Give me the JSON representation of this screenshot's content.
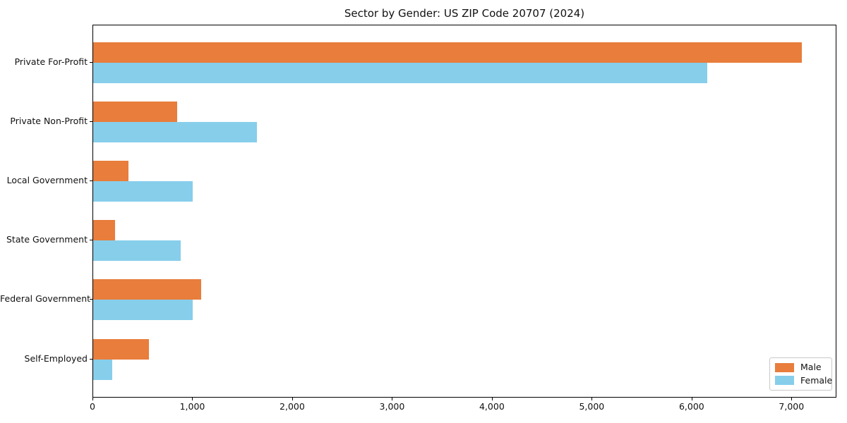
{
  "chart_data": {
    "type": "bar",
    "orientation": "horizontal",
    "title": "Sector by Gender: US ZIP Code 20707 (2024)",
    "categories": [
      "Private For-Profit",
      "Private Non-Profit",
      "Local Government",
      "State Government",
      "Federal Government",
      "Self-Employed"
    ],
    "series": [
      {
        "name": "Male",
        "color": "#e87d3c",
        "values": [
          7100,
          840,
          350,
          220,
          1080,
          560
        ]
      },
      {
        "name": "Female",
        "color": "#87ceeb",
        "values": [
          6150,
          1640,
          1000,
          880,
          1000,
          190
        ]
      }
    ],
    "xlabel": "",
    "ylabel": "",
    "xlim": [
      0,
      7450
    ],
    "xticks": [
      0,
      1000,
      2000,
      3000,
      4000,
      5000,
      6000,
      7000
    ],
    "xtick_labels": [
      "0",
      "1,000",
      "2,000",
      "3,000",
      "4,000",
      "5,000",
      "6,000",
      "7,000"
    ],
    "grid": false,
    "legend": {
      "position": "lower right",
      "entries": [
        "Male",
        "Female"
      ]
    }
  }
}
